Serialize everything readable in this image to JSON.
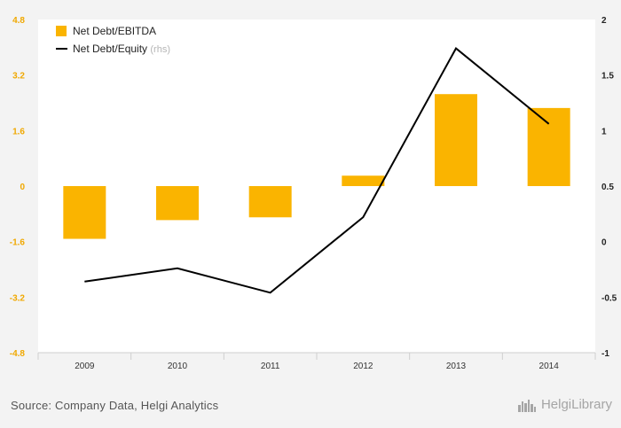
{
  "chart_data": {
    "type": "bar+line",
    "categories": [
      "2009",
      "2010",
      "2011",
      "2012",
      "2013",
      "2014"
    ],
    "series": [
      {
        "name": "Net Debt/EBITDA",
        "type": "bar",
        "axis": "left",
        "color": "#fab400",
        "values": [
          -1.52,
          -0.98,
          -0.9,
          0.3,
          2.65,
          2.25
        ]
      },
      {
        "name": "Net Debt/Equity",
        "name_suffix": "(rhs)",
        "type": "line",
        "axis": "right",
        "color": "#000000",
        "values": [
          -0.36,
          -0.24,
          -0.46,
          0.22,
          1.74,
          1.06
        ]
      }
    ],
    "y_left": {
      "min": -4.8,
      "max": 4.8,
      "ticks": [
        "4.8",
        "3.2",
        "1.6",
        "0",
        "-1.6",
        "-3.2",
        "-4.8"
      ],
      "tick_color": "#f0a800"
    },
    "y_right": {
      "min": -1,
      "max": 2,
      "ticks": [
        "2",
        "1.5",
        "1",
        "0.5",
        "0",
        "-0.5",
        "-1"
      ]
    },
    "legend_position": "top-left",
    "grid": false
  },
  "footer": {
    "source": "Source: Company Data, Helgi Analytics",
    "brand": "HelgiLibrary",
    "brand_icon": "city-skyline-icon"
  }
}
